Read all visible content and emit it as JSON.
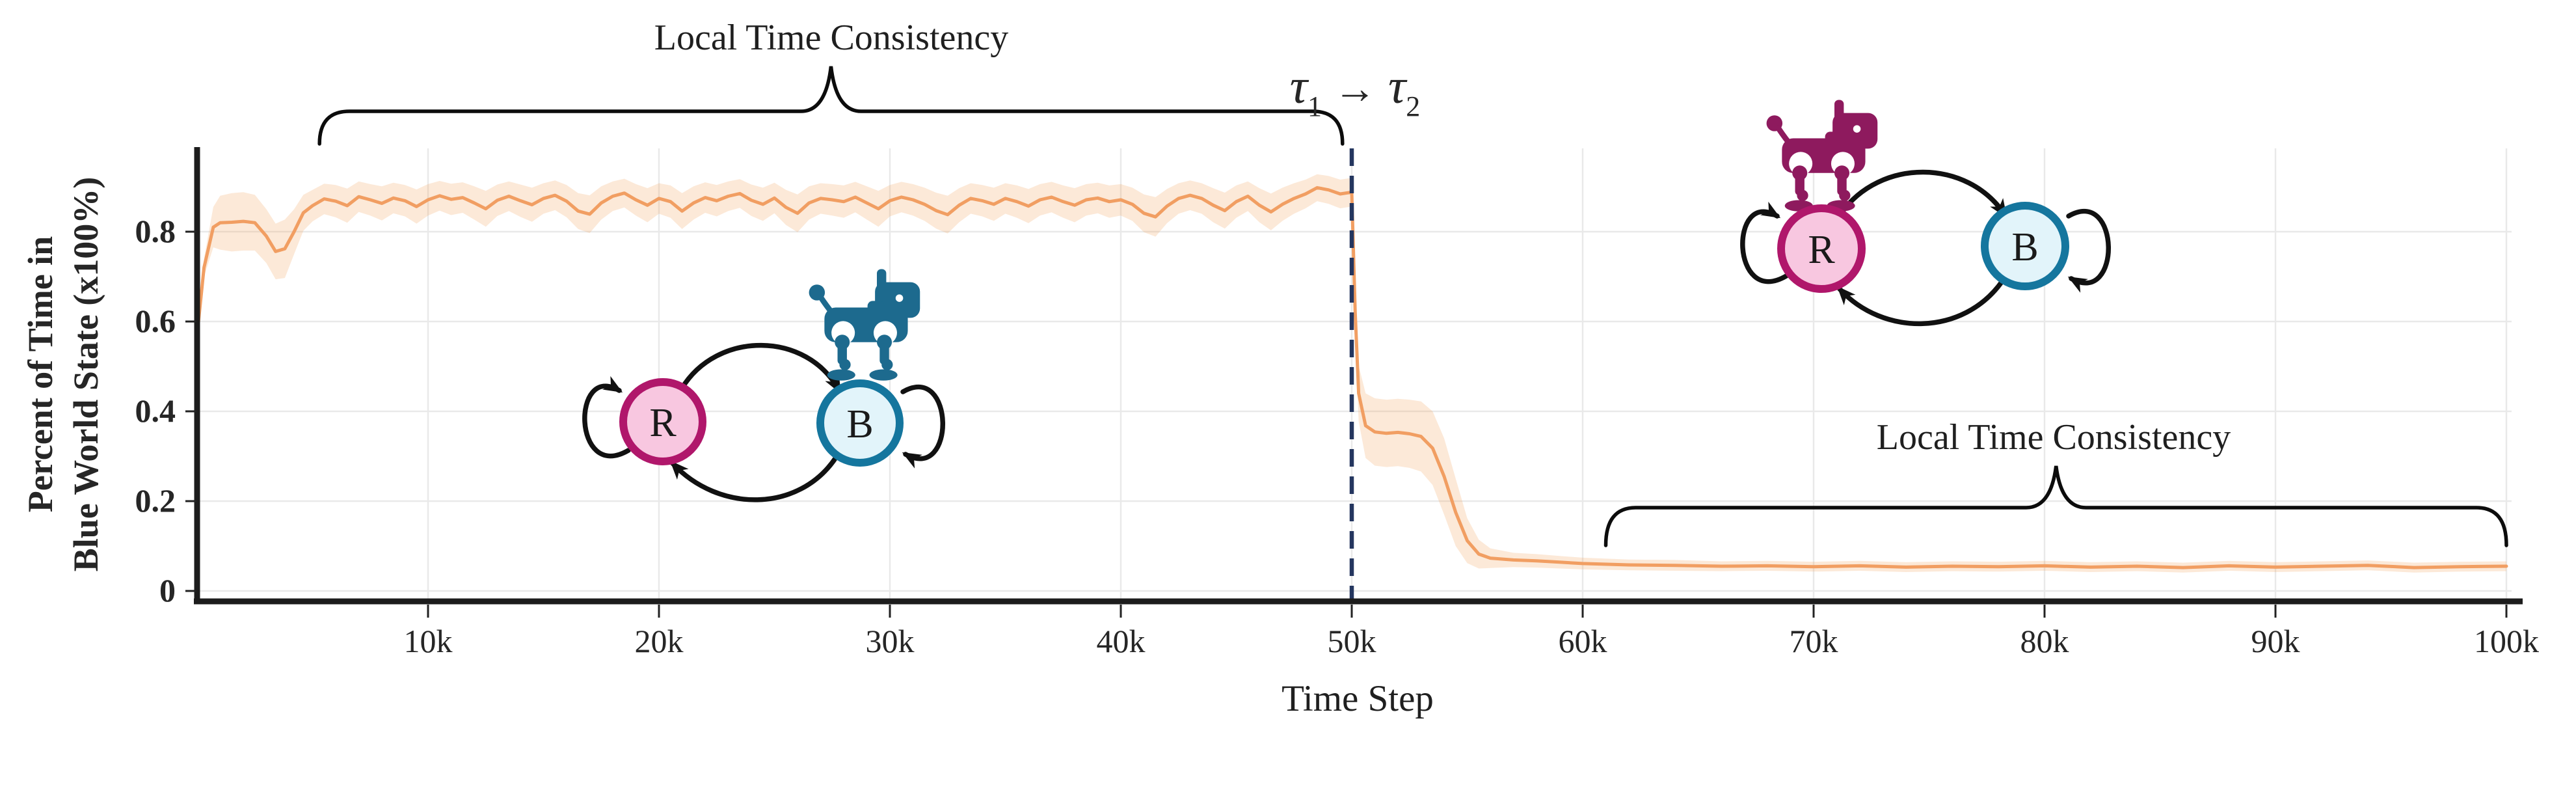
{
  "figure": {
    "y_axis": {
      "label_line1": "Percent of Time in",
      "label_line2": "Blue World State (x100%)",
      "tick_labels": [
        "0",
        "0.2",
        "0.4",
        "0.6",
        "0.8"
      ]
    },
    "x_axis": {
      "label": "Time Step",
      "tick_labels": [
        "10k",
        "20k",
        "30k",
        "40k",
        "50k",
        "60k",
        "70k",
        "80k",
        "90k",
        "100k"
      ]
    },
    "annotations": {
      "brace_left": {
        "label": "Local Time Consistency",
        "from_k": 5.3,
        "to_k": 49.6
      },
      "brace_right": {
        "label": "Local Time Consistency",
        "from_k": 61.0,
        "to_k": 100.0
      },
      "tau": {
        "tau1": "τ",
        "sub1": "1",
        "arrow": "→",
        "tau2": "τ",
        "sub2": "2",
        "at_k": 50
      }
    },
    "diagrams": {
      "node_r_label": "R",
      "node_b_label": "B",
      "colors": {
        "r_fill": "#f8c7e0",
        "r_stroke": "#b0176b",
        "b_fill": "#e2f4fa",
        "b_stroke": "#15769e",
        "robot_teal": "#1d6a8e",
        "robot_magenta": "#8e1a5e",
        "arrow": "#111111"
      },
      "diagram1": {
        "robot_on": "B",
        "robot_color_name": "teal"
      },
      "diagram2": {
        "robot_on": "R",
        "robot_color_name": "magenta"
      }
    }
  },
  "chart_data": {
    "type": "line",
    "title": "",
    "xlabel": "Time Step",
    "ylabel": "Percent of Time in Blue World State (x100%)",
    "xlim_k": [
      0,
      100
    ],
    "ylim": [
      0,
      0.99
    ],
    "grid": true,
    "x_tick_values_k": [
      10,
      20,
      30,
      40,
      50,
      60,
      70,
      80,
      90,
      100
    ],
    "x_tick_labels": [
      "10k",
      "20k",
      "30k",
      "40k",
      "50k",
      "60k",
      "70k",
      "80k",
      "90k",
      "100k"
    ],
    "y_tick_values": [
      0,
      0.2,
      0.4,
      0.6,
      0.8
    ],
    "y_tick_labels": [
      "0",
      "0.2",
      "0.4",
      "0.6",
      "0.8"
    ],
    "vline": {
      "x_k": 50,
      "style": "dashed",
      "color": "#24365f"
    },
    "colors": {
      "line": "#f19e62",
      "band": "#f5a963",
      "band_opacity": 0.25,
      "grid": "#e9e9e9",
      "spine": "#1c1c1c"
    },
    "series": [
      {
        "name": "Percent of time in blue world state (mean with shaded band, x in thousands of steps)",
        "points_x_k_y_bandhw": [
          [
            0,
            0.57,
            0.005
          ],
          [
            0.3,
            0.72,
            0.02
          ],
          [
            0.7,
            0.81,
            0.045
          ],
          [
            1,
            0.82,
            0.06
          ],
          [
            1.5,
            0.821,
            0.065
          ],
          [
            2,
            0.823,
            0.065
          ],
          [
            2.5,
            0.82,
            0.062
          ],
          [
            3,
            0.79,
            0.06
          ],
          [
            3.4,
            0.756,
            0.062
          ],
          [
            3.8,
            0.762,
            0.065
          ],
          [
            4.2,
            0.8,
            0.05
          ],
          [
            4.6,
            0.842,
            0.04
          ],
          [
            5,
            0.858,
            0.035
          ],
          [
            5.5,
            0.873,
            0.034
          ],
          [
            6,
            0.868,
            0.036
          ],
          [
            6.5,
            0.858,
            0.038
          ],
          [
            7,
            0.878,
            0.034
          ],
          [
            7.5,
            0.871,
            0.035
          ],
          [
            8,
            0.863,
            0.038
          ],
          [
            8.5,
            0.875,
            0.034
          ],
          [
            9,
            0.869,
            0.035
          ],
          [
            9.5,
            0.856,
            0.038
          ],
          [
            10,
            0.871,
            0.035
          ],
          [
            10.5,
            0.88,
            0.033
          ],
          [
            11,
            0.872,
            0.035
          ],
          [
            11.5,
            0.876,
            0.034
          ],
          [
            12,
            0.864,
            0.037
          ],
          [
            12.5,
            0.851,
            0.04
          ],
          [
            13,
            0.87,
            0.035
          ],
          [
            13.5,
            0.879,
            0.033
          ],
          [
            14,
            0.869,
            0.036
          ],
          [
            14.5,
            0.86,
            0.038
          ],
          [
            15,
            0.874,
            0.034
          ],
          [
            15.5,
            0.881,
            0.033
          ],
          [
            16,
            0.868,
            0.036
          ],
          [
            16.5,
            0.846,
            0.04
          ],
          [
            17,
            0.839,
            0.042
          ],
          [
            17.5,
            0.864,
            0.037
          ],
          [
            18,
            0.879,
            0.033
          ],
          [
            18.5,
            0.886,
            0.032
          ],
          [
            19,
            0.871,
            0.035
          ],
          [
            19.5,
            0.859,
            0.038
          ],
          [
            20,
            0.874,
            0.034
          ],
          [
            20.5,
            0.867,
            0.036
          ],
          [
            21,
            0.846,
            0.04
          ],
          [
            21.5,
            0.864,
            0.037
          ],
          [
            22,
            0.876,
            0.034
          ],
          [
            22.5,
            0.869,
            0.035
          ],
          [
            23,
            0.879,
            0.033
          ],
          [
            23.5,
            0.885,
            0.032
          ],
          [
            24,
            0.87,
            0.035
          ],
          [
            24.5,
            0.861,
            0.037
          ],
          [
            25,
            0.875,
            0.034
          ],
          [
            25.5,
            0.854,
            0.039
          ],
          [
            26,
            0.841,
            0.042
          ],
          [
            26.5,
            0.864,
            0.037
          ],
          [
            27,
            0.874,
            0.034
          ],
          [
            27.5,
            0.871,
            0.035
          ],
          [
            28,
            0.867,
            0.036
          ],
          [
            28.5,
            0.877,
            0.034
          ],
          [
            29,
            0.864,
            0.037
          ],
          [
            29.5,
            0.851,
            0.04
          ],
          [
            30,
            0.869,
            0.035
          ],
          [
            30.5,
            0.877,
            0.034
          ],
          [
            31,
            0.871,
            0.035
          ],
          [
            31.5,
            0.861,
            0.037
          ],
          [
            32,
            0.847,
            0.04
          ],
          [
            32.5,
            0.838,
            0.042
          ],
          [
            33,
            0.859,
            0.038
          ],
          [
            33.5,
            0.874,
            0.034
          ],
          [
            34,
            0.869,
            0.035
          ],
          [
            34.5,
            0.861,
            0.037
          ],
          [
            35,
            0.874,
            0.034
          ],
          [
            35.5,
            0.867,
            0.036
          ],
          [
            36,
            0.857,
            0.038
          ],
          [
            36.5,
            0.871,
            0.035
          ],
          [
            37,
            0.877,
            0.034
          ],
          [
            37.5,
            0.867,
            0.036
          ],
          [
            38,
            0.859,
            0.038
          ],
          [
            38.5,
            0.871,
            0.035
          ],
          [
            39,
            0.875,
            0.034
          ],
          [
            39.5,
            0.867,
            0.036
          ],
          [
            40,
            0.871,
            0.035
          ],
          [
            40.5,
            0.861,
            0.037
          ],
          [
            41,
            0.841,
            0.042
          ],
          [
            41.5,
            0.833,
            0.044
          ],
          [
            42,
            0.857,
            0.038
          ],
          [
            42.5,
            0.874,
            0.034
          ],
          [
            43,
            0.881,
            0.033
          ],
          [
            43.5,
            0.874,
            0.034
          ],
          [
            44,
            0.859,
            0.038
          ],
          [
            44.5,
            0.847,
            0.04
          ],
          [
            45,
            0.867,
            0.036
          ],
          [
            45.5,
            0.879,
            0.033
          ],
          [
            46,
            0.859,
            0.038
          ],
          [
            46.5,
            0.844,
            0.041
          ],
          [
            47,
            0.861,
            0.037
          ],
          [
            47.5,
            0.874,
            0.034
          ],
          [
            48,
            0.884,
            0.032
          ],
          [
            48.5,
            0.898,
            0.03
          ],
          [
            49,
            0.893,
            0.031
          ],
          [
            49.5,
            0.884,
            0.032
          ],
          [
            50,
            0.888,
            0.032
          ],
          [
            50.15,
            0.62,
            0.05
          ],
          [
            50.3,
            0.44,
            0.062
          ],
          [
            50.6,
            0.368,
            0.072
          ],
          [
            51,
            0.354,
            0.075
          ],
          [
            51.5,
            0.351,
            0.075
          ],
          [
            52,
            0.353,
            0.075
          ],
          [
            52.5,
            0.35,
            0.076
          ],
          [
            53,
            0.344,
            0.078
          ],
          [
            53.5,
            0.318,
            0.082
          ],
          [
            54,
            0.255,
            0.085
          ],
          [
            54.5,
            0.175,
            0.075
          ],
          [
            55,
            0.112,
            0.05
          ],
          [
            55.5,
            0.082,
            0.032
          ],
          [
            56,
            0.073,
            0.022
          ],
          [
            57,
            0.069,
            0.016
          ],
          [
            58,
            0.067,
            0.015
          ],
          [
            59,
            0.064,
            0.014
          ],
          [
            60,
            0.061,
            0.013
          ],
          [
            62,
            0.058,
            0.012
          ],
          [
            64,
            0.057,
            0.012
          ],
          [
            66,
            0.055,
            0.011
          ],
          [
            68,
            0.056,
            0.011
          ],
          [
            70,
            0.054,
            0.011
          ],
          [
            72,
            0.056,
            0.011
          ],
          [
            74,
            0.053,
            0.011
          ],
          [
            76,
            0.055,
            0.011
          ],
          [
            78,
            0.054,
            0.011
          ],
          [
            80,
            0.056,
            0.011
          ],
          [
            82,
            0.053,
            0.011
          ],
          [
            84,
            0.055,
            0.011
          ],
          [
            86,
            0.052,
            0.011
          ],
          [
            88,
            0.056,
            0.011
          ],
          [
            90,
            0.053,
            0.011
          ],
          [
            92,
            0.055,
            0.011
          ],
          [
            94,
            0.057,
            0.011
          ],
          [
            96,
            0.052,
            0.011
          ],
          [
            98,
            0.054,
            0.011
          ],
          [
            100,
            0.055,
            0.011
          ]
        ]
      }
    ]
  }
}
